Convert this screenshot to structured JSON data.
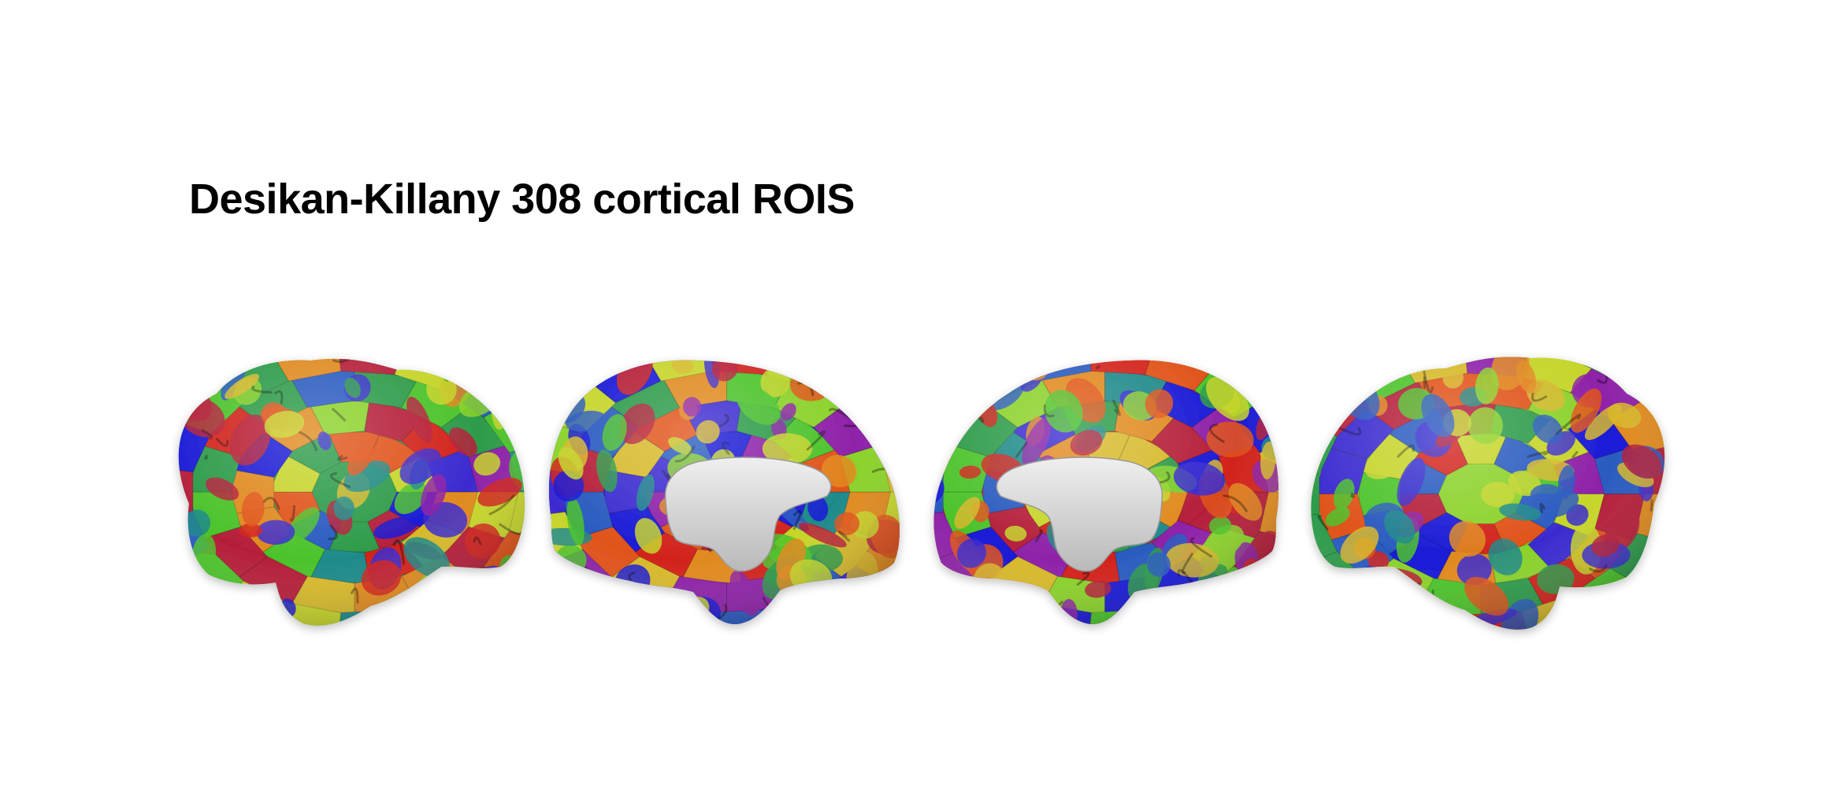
{
  "figure": {
    "title": "Desikan-Killany 308 cortical ROIS",
    "palette": [
      "#1a1ad6",
      "#3b2bd0",
      "#2a5bc0",
      "#1f8a8a",
      "#2d9b4a",
      "#4cc32b",
      "#8bd22a",
      "#c6d52a",
      "#d7b92b",
      "#e08a1f",
      "#e0531a",
      "#d2231c",
      "#b51f3a",
      "#8e22a8"
    ],
    "medial_color": "#d9d9d9",
    "views": [
      {
        "name": "left-lateral-view",
        "kind": "lateral",
        "flip": false
      },
      {
        "name": "left-medial-view",
        "kind": "medial",
        "flip": false
      },
      {
        "name": "right-medial-view",
        "kind": "medial",
        "flip": true
      },
      {
        "name": "right-lateral-view",
        "kind": "lateral",
        "flip": true
      }
    ]
  }
}
